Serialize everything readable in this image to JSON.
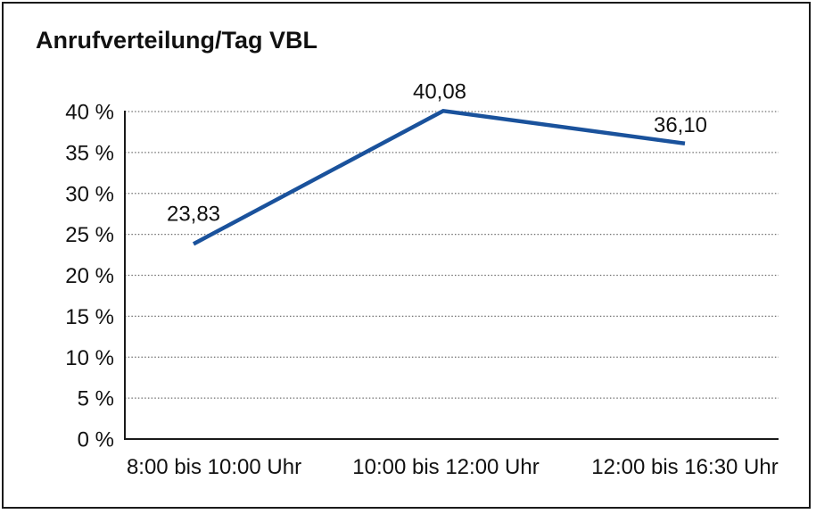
{
  "chart_data": {
    "type": "line",
    "title": "Anrufverteilung/Tag VBL",
    "categories": [
      "8:00 bis 10:00 Uhr",
      "10:00 bis 12:00 Uhr",
      "12:00 bis 16:30 Uhr"
    ],
    "values": [
      23.83,
      40.08,
      36.1
    ],
    "data_labels": [
      "23,83",
      "40,08",
      "36,10"
    ],
    "y_tick_labels": [
      "0 %",
      "5 %",
      "10 %",
      "15 %",
      "20 %",
      "25 %",
      "30 %",
      "35 %",
      "40 %"
    ],
    "y_tick_values": [
      0,
      5,
      10,
      15,
      20,
      25,
      30,
      35,
      40
    ],
    "ylim": [
      0,
      40
    ],
    "xlabel": "",
    "ylabel": "",
    "grid": "horizontal-dotted",
    "legend": "none",
    "colors": {
      "line": "#1a529c",
      "text": "#111111",
      "grid": "#707070",
      "axis": "#1a1a1a",
      "frame_border": "#1a1a1a",
      "background": "#ffffff"
    }
  }
}
